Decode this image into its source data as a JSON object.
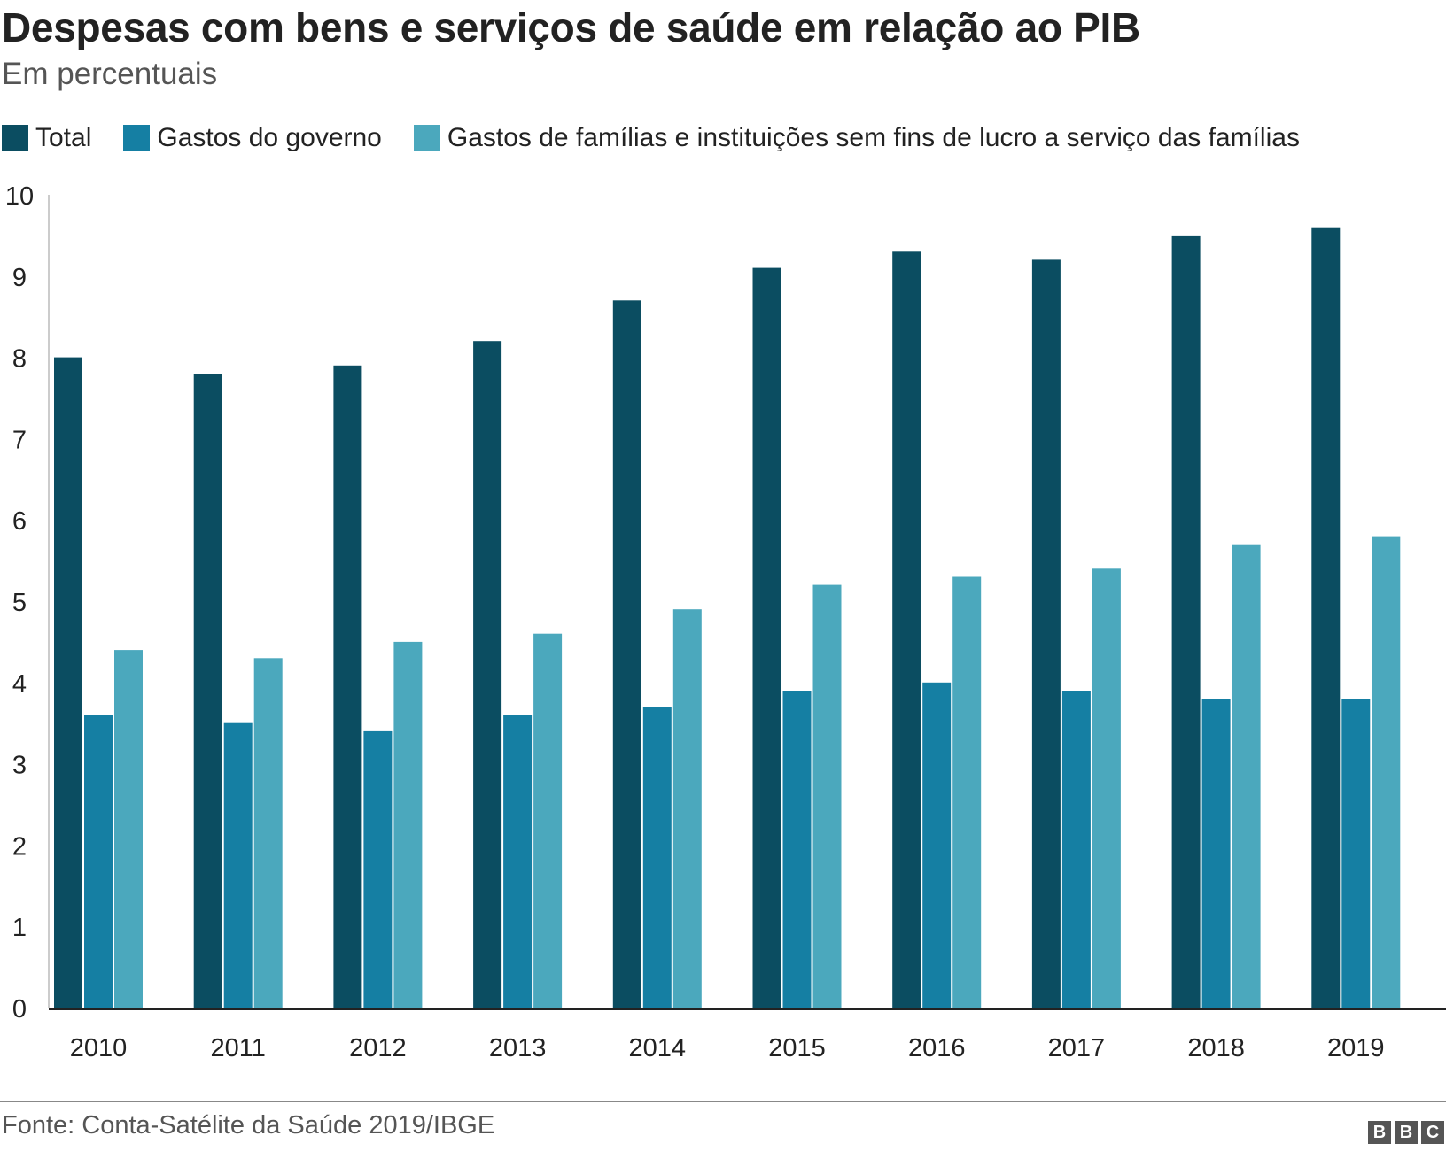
{
  "header": {
    "title": "Despesas com bens e serviços de saúde em relação ao PIB",
    "subtitle": "Em percentuais"
  },
  "legend": {
    "items": [
      {
        "label": "Total",
        "color": "#0b4d61"
      },
      {
        "label": "Gastos do governo",
        "color": "#157fa3"
      },
      {
        "label": "Gastos de famílias e instituições sem fins de lucro a serviço das famílias",
        "color": "#4ba8bd"
      }
    ]
  },
  "footer": {
    "source": "Fonte: Conta-Satélite da Saúde 2019/IBGE",
    "logo": [
      "B",
      "B",
      "C"
    ]
  },
  "chart_data": {
    "type": "bar",
    "title": "Despesas com bens e serviços de saúde em relação ao PIB",
    "subtitle": "Em percentuais",
    "xlabel": "",
    "ylabel": "",
    "ylim": [
      0,
      10
    ],
    "yticks": [
      0,
      1,
      2,
      3,
      4,
      5,
      6,
      7,
      8,
      9,
      10
    ],
    "grid": false,
    "legend_position": "top",
    "categories": [
      "2010",
      "2011",
      "2012",
      "2013",
      "2014",
      "2015",
      "2016",
      "2017",
      "2018",
      "2019"
    ],
    "series": [
      {
        "name": "Total",
        "color": "#0b4d61",
        "values": [
          8.0,
          7.8,
          7.9,
          8.2,
          8.7,
          9.1,
          9.3,
          9.2,
          9.5,
          9.6
        ]
      },
      {
        "name": "Gastos do governo",
        "color": "#157fa3",
        "values": [
          3.6,
          3.5,
          3.4,
          3.6,
          3.7,
          3.9,
          4.0,
          3.9,
          3.8,
          3.8
        ]
      },
      {
        "name": "Gastos de famílias e instituições sem fins de lucro a serviço das famílias",
        "color": "#4ba8bd",
        "values": [
          4.4,
          4.3,
          4.5,
          4.6,
          4.9,
          5.2,
          5.3,
          5.4,
          5.7,
          5.8
        ]
      }
    ]
  }
}
